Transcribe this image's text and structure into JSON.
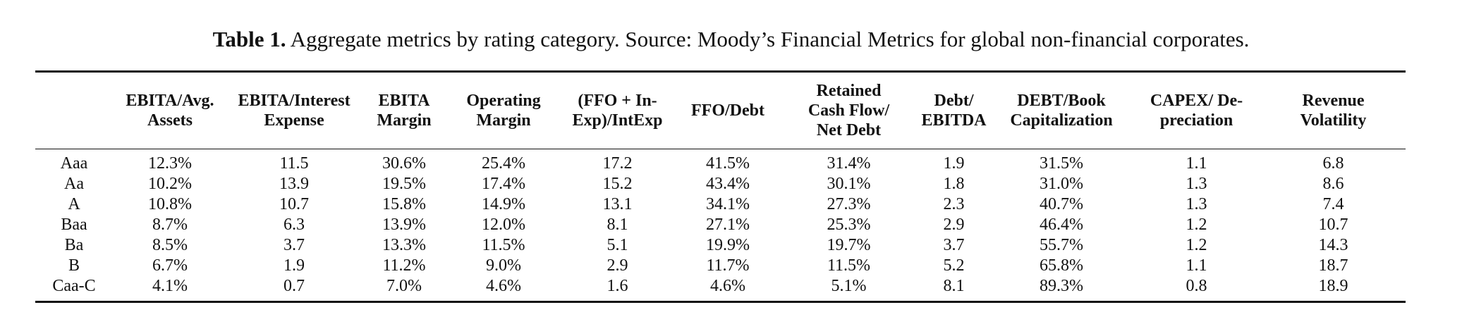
{
  "caption": {
    "label": "Table 1.",
    "text": " Aggregate metrics by rating category. Source: Moody’s Financial Metrics for global non-financial corporates."
  },
  "table": {
    "headers": [
      [
        ""
      ],
      [
        "EBITA/Avg.",
        "Assets"
      ],
      [
        "EBITA/Interest",
        "Expense"
      ],
      [
        "EBITA",
        "Margin"
      ],
      [
        "Operating",
        "Margin"
      ],
      [
        "(FFO + In-",
        "Exp)/IntExp"
      ],
      [
        "FFO/Debt"
      ],
      [
        "Retained",
        "Cash Flow/",
        "Net Debt"
      ],
      [
        "Debt/",
        "EBITDA"
      ],
      [
        "DEBT/Book",
        "Capitalization"
      ],
      [
        "CAPEX/ De-",
        "preciation"
      ],
      [
        "Revenue",
        "Volatility"
      ]
    ],
    "rows": [
      [
        "Aaa",
        "12.3%",
        "11.5",
        "30.6%",
        "25.4%",
        "17.2",
        "41.5%",
        "31.4%",
        "1.9",
        "31.5%",
        "1.1",
        "6.8"
      ],
      [
        "Aa",
        "10.2%",
        "13.9",
        "19.5%",
        "17.4%",
        "15.2",
        "43.4%",
        "30.1%",
        "1.8",
        "31.0%",
        "1.3",
        "8.6"
      ],
      [
        "A",
        "10.8%",
        "10.7",
        "15.8%",
        "14.9%",
        "13.1",
        "34.1%",
        "27.3%",
        "2.3",
        "40.7%",
        "1.3",
        "7.4"
      ],
      [
        "Baa",
        "8.7%",
        "6.3",
        "13.9%",
        "12.0%",
        "8.1",
        "27.1%",
        "25.3%",
        "2.9",
        "46.4%",
        "1.2",
        "10.7"
      ],
      [
        "Ba",
        "8.5%",
        "3.7",
        "13.3%",
        "11.5%",
        "5.1",
        "19.9%",
        "19.7%",
        "3.7",
        "55.7%",
        "1.2",
        "14.3"
      ],
      [
        "B",
        "6.7%",
        "1.9",
        "11.2%",
        "9.0%",
        "2.9",
        "11.7%",
        "11.5%",
        "5.2",
        "65.8%",
        "1.1",
        "18.7"
      ],
      [
        "Caa-C",
        "4.1%",
        "0.7",
        "7.0%",
        "4.6%",
        "1.6",
        "4.6%",
        "5.1%",
        "8.1",
        "89.3%",
        "0.8",
        "18.9"
      ]
    ]
  }
}
